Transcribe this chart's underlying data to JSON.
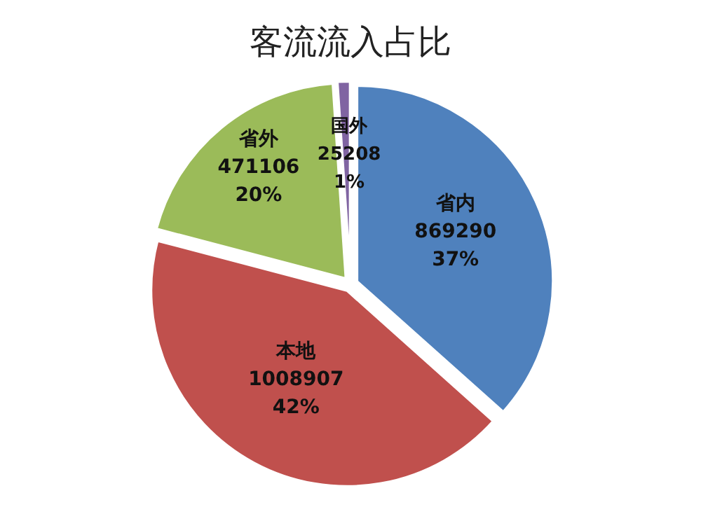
{
  "chart_data": {
    "type": "pie",
    "title": "客流流入占比",
    "categories": [
      "省内",
      "本地",
      "省外",
      "国外"
    ],
    "values": [
      869290,
      1008907,
      471106,
      25208
    ],
    "colors": [
      "#4f81bd",
      "#c0504d",
      "#9bbb59",
      "#8064a2"
    ],
    "value_labels": [
      "869290\n37%",
      "1008907\n42%",
      "471106\n20%",
      "25208\n1%"
    ],
    "legend": false
  }
}
